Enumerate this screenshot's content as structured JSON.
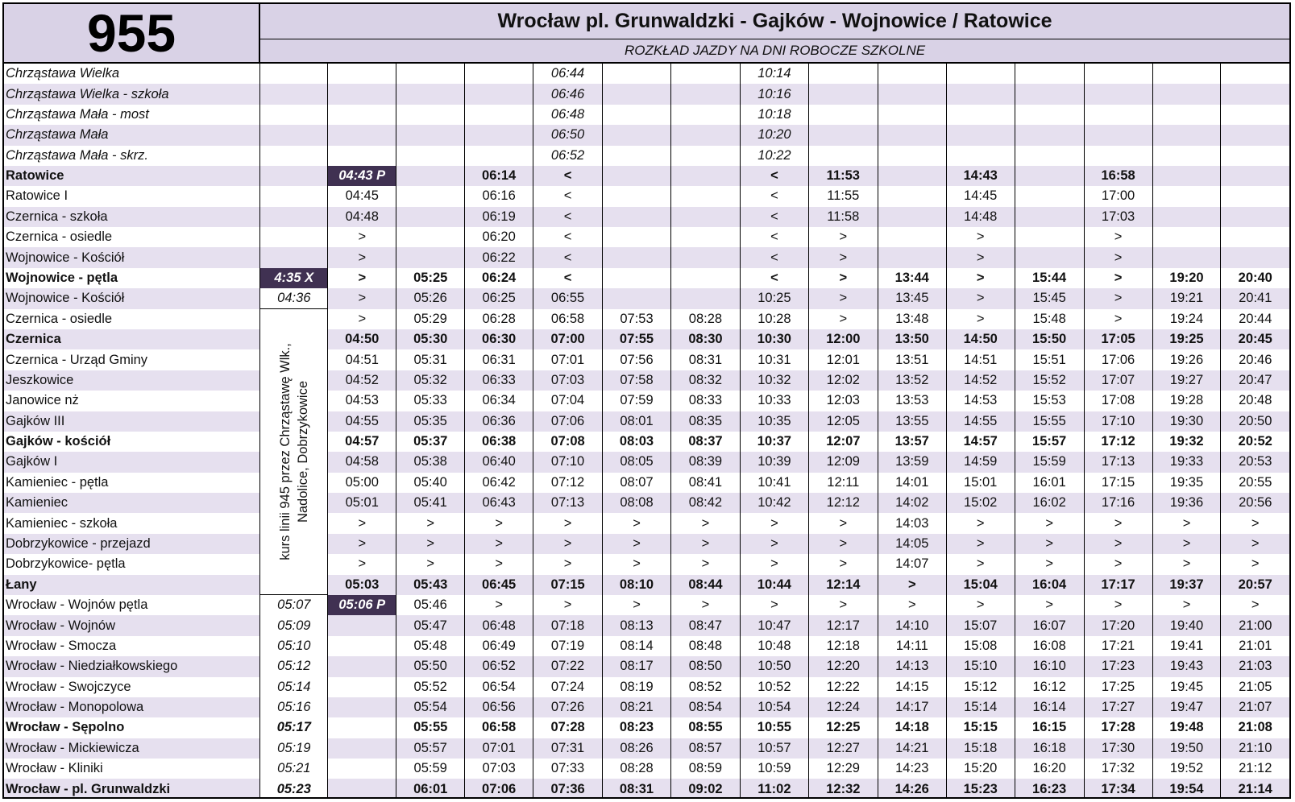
{
  "header": {
    "line_number": "955",
    "route_title": "Wrocław pl. Grunwaldzki - Gajków - Wojnowice / Ratowice",
    "schedule_type": "ROZKŁAD JAZDY NA DNI ROBOCZE SZKOLNE"
  },
  "note": "kurs linii 945 przez Chrząstawę Wlk., Nadolice, Dobrzykowice",
  "colors": {
    "header_bg": "#d9d2e6",
    "row_alt_bg": "#e6e0ef",
    "highlight_bg": "#403152"
  },
  "rows": [
    {
      "stop": "Chrząstawa Wielka",
      "style": "italic",
      "times": [
        "",
        "",
        "",
        "",
        "06:44",
        "",
        "",
        "10:14",
        "",
        "",
        "",
        "",
        "",
        "",
        ""
      ]
    },
    {
      "stop": "Chrząstawa Wielka - szkoła",
      "style": "italic",
      "times": [
        "",
        "",
        "",
        "",
        "06:46",
        "",
        "",
        "10:16",
        "",
        "",
        "",
        "",
        "",
        "",
        ""
      ]
    },
    {
      "stop": "Chrząstawa Mała - most",
      "style": "italic",
      "times": [
        "",
        "",
        "",
        "",
        "06:48",
        "",
        "",
        "10:18",
        "",
        "",
        "",
        "",
        "",
        "",
        ""
      ]
    },
    {
      "stop": "Chrząstawa Mała",
      "style": "italic",
      "times": [
        "",
        "",
        "",
        "",
        "06:50",
        "",
        "",
        "10:20",
        "",
        "",
        "",
        "",
        "",
        "",
        ""
      ]
    },
    {
      "stop": "Chrząstawa Mała - skrz.",
      "style": "italic",
      "times": [
        "",
        "",
        "",
        "",
        "06:52",
        "",
        "",
        "10:22",
        "",
        "",
        "",
        "",
        "",
        "",
        ""
      ]
    },
    {
      "stop": "Ratowice",
      "style": "bold",
      "times": [
        "",
        "04:43 P",
        "",
        "06:14",
        "<",
        "",
        "",
        "<",
        "11:53",
        "",
        "14:43",
        "",
        "16:58",
        "",
        ""
      ]
    },
    {
      "stop": "Ratowice I",
      "style": "normal",
      "times": [
        "",
        "04:45",
        "",
        "06:16",
        "<",
        "",
        "",
        "<",
        "11:55",
        "",
        "14:45",
        "",
        "17:00",
        "",
        ""
      ]
    },
    {
      "stop": "Czernica - szkoła",
      "style": "normal",
      "times": [
        "",
        "04:48",
        "",
        "06:19",
        "<",
        "",
        "",
        "<",
        "11:58",
        "",
        "14:48",
        "",
        "17:03",
        "",
        ""
      ]
    },
    {
      "stop": "Czernica - osiedle",
      "style": "normal",
      "times": [
        "",
        ">",
        "",
        "06:20",
        "<",
        "",
        "",
        "<",
        ">",
        "",
        ">",
        "",
        ">",
        "",
        ""
      ]
    },
    {
      "stop": "Wojnowice - Kościół",
      "style": "normal",
      "times": [
        "",
        ">",
        "",
        "06:22",
        "<",
        "",
        "",
        "<",
        ">",
        "",
        ">",
        "",
        ">",
        "",
        ""
      ]
    },
    {
      "stop": "Wojnowice - pętla",
      "style": "bold",
      "times": [
        "4:35 X",
        ">",
        "05:25",
        "06:24",
        "<",
        "",
        "",
        "<",
        ">",
        "13:44",
        ">",
        "15:44",
        ">",
        "19:20",
        "20:40"
      ]
    },
    {
      "stop": "Wojnowice - Kościół",
      "style": "normal",
      "times": [
        "04:36",
        ">",
        "05:26",
        "06:25",
        "06:55",
        "",
        "",
        "10:25",
        ">",
        "13:45",
        ">",
        "15:45",
        ">",
        "19:21",
        "20:41"
      ]
    },
    {
      "stop": "Czernica - osiedle",
      "style": "normal",
      "times": [
        "",
        ">",
        "05:29",
        "06:28",
        "06:58",
        "07:53",
        "08:28",
        "10:28",
        ">",
        "13:48",
        ">",
        "15:48",
        ">",
        "19:24",
        "20:44"
      ]
    },
    {
      "stop": "Czernica",
      "style": "bold",
      "times": [
        "",
        "04:50",
        "05:30",
        "06:30",
        "07:00",
        "07:55",
        "08:30",
        "10:30",
        "12:00",
        "13:50",
        "14:50",
        "15:50",
        "17:05",
        "19:25",
        "20:45"
      ]
    },
    {
      "stop": "Czernica - Urząd Gminy",
      "style": "normal",
      "times": [
        "",
        "04:51",
        "05:31",
        "06:31",
        "07:01",
        "07:56",
        "08:31",
        "10:31",
        "12:01",
        "13:51",
        "14:51",
        "15:51",
        "17:06",
        "19:26",
        "20:46"
      ]
    },
    {
      "stop": "Jeszkowice",
      "style": "normal",
      "times": [
        "",
        "04:52",
        "05:32",
        "06:33",
        "07:03",
        "07:58",
        "08:32",
        "10:32",
        "12:02",
        "13:52",
        "14:52",
        "15:52",
        "17:07",
        "19:27",
        "20:47"
      ]
    },
    {
      "stop": "Janowice nż",
      "style": "normal",
      "times": [
        "",
        "04:53",
        "05:33",
        "06:34",
        "07:04",
        "07:59",
        "08:33",
        "10:33",
        "12:03",
        "13:53",
        "14:53",
        "15:53",
        "17:08",
        "19:28",
        "20:48"
      ]
    },
    {
      "stop": "Gajków III",
      "style": "normal",
      "times": [
        "",
        "04:55",
        "05:35",
        "06:36",
        "07:06",
        "08:01",
        "08:35",
        "10:35",
        "12:05",
        "13:55",
        "14:55",
        "15:55",
        "17:10",
        "19:30",
        "20:50"
      ]
    },
    {
      "stop": "Gajków - kościół",
      "style": "bold",
      "times": [
        "",
        "04:57",
        "05:37",
        "06:38",
        "07:08",
        "08:03",
        "08:37",
        "10:37",
        "12:07",
        "13:57",
        "14:57",
        "15:57",
        "17:12",
        "19:32",
        "20:52"
      ]
    },
    {
      "stop": "Gajków I",
      "style": "normal",
      "times": [
        "",
        "04:58",
        "05:38",
        "06:40",
        "07:10",
        "08:05",
        "08:39",
        "10:39",
        "12:09",
        "13:59",
        "14:59",
        "15:59",
        "17:13",
        "19:33",
        "20:53"
      ]
    },
    {
      "stop": "Kamieniec - pętla",
      "style": "normal",
      "times": [
        "",
        "05:00",
        "05:40",
        "06:42",
        "07:12",
        "08:07",
        "08:41",
        "10:41",
        "12:11",
        "14:01",
        "15:01",
        "16:01",
        "17:15",
        "19:35",
        "20:55"
      ]
    },
    {
      "stop": "Kamieniec",
      "style": "normal",
      "times": [
        "",
        "05:01",
        "05:41",
        "06:43",
        "07:13",
        "08:08",
        "08:42",
        "10:42",
        "12:12",
        "14:02",
        "15:02",
        "16:02",
        "17:16",
        "19:36",
        "20:56"
      ]
    },
    {
      "stop": "Kamieniec - szkoła",
      "style": "normal",
      "times": [
        "",
        ">",
        ">",
        ">",
        ">",
        ">",
        ">",
        ">",
        ">",
        "14:03",
        ">",
        ">",
        ">",
        ">",
        ">"
      ]
    },
    {
      "stop": "Dobrzykowice - przejazd",
      "style": "normal",
      "times": [
        "",
        ">",
        ">",
        ">",
        ">",
        ">",
        ">",
        ">",
        ">",
        "14:05",
        ">",
        ">",
        ">",
        ">",
        ">"
      ]
    },
    {
      "stop": "Dobrzykowice-  pętla",
      "style": "normal",
      "times": [
        "",
        ">",
        ">",
        ">",
        ">",
        ">",
        ">",
        ">",
        ">",
        "14:07",
        ">",
        ">",
        ">",
        ">",
        ">"
      ]
    },
    {
      "stop": "Łany",
      "style": "bold",
      "times": [
        "",
        "05:03",
        "05:43",
        "06:45",
        "07:15",
        "08:10",
        "08:44",
        "10:44",
        "12:14",
        ">",
        "15:04",
        "16:04",
        "17:17",
        "19:37",
        "20:57"
      ]
    },
    {
      "stop": "Wrocław - Wojnów pętla",
      "style": "normal",
      "times": [
        "05:07",
        "05:06 P",
        "05:46",
        ">",
        ">",
        ">",
        ">",
        ">",
        ">",
        ">",
        ">",
        ">",
        ">",
        ">",
        ">"
      ]
    },
    {
      "stop": "Wrocław - Wojnów",
      "style": "normal",
      "times": [
        "05:09",
        "",
        "05:47",
        "06:48",
        "07:18",
        "08:13",
        "08:47",
        "10:47",
        "12:17",
        "14:10",
        "15:07",
        "16:07",
        "17:20",
        "19:40",
        "21:00"
      ]
    },
    {
      "stop": "Wrocław - Smocza",
      "style": "normal",
      "times": [
        "05:10",
        "",
        "05:48",
        "06:49",
        "07:19",
        "08:14",
        "08:48",
        "10:48",
        "12:18",
        "14:11",
        "15:08",
        "16:08",
        "17:21",
        "19:41",
        "21:01"
      ]
    },
    {
      "stop": "Wrocław - Niedziałkowskiego",
      "style": "normal",
      "times": [
        "05:12",
        "",
        "05:50",
        "06:52",
        "07:22",
        "08:17",
        "08:50",
        "10:50",
        "12:20",
        "14:13",
        "15:10",
        "16:10",
        "17:23",
        "19:43",
        "21:03"
      ]
    },
    {
      "stop": "Wrocław - Swojczyce",
      "style": "normal",
      "times": [
        "05:14",
        "",
        "05:52",
        "06:54",
        "07:24",
        "08:19",
        "08:52",
        "10:52",
        "12:22",
        "14:15",
        "15:12",
        "16:12",
        "17:25",
        "19:45",
        "21:05"
      ]
    },
    {
      "stop": "Wrocław - Monopolowa",
      "style": "normal",
      "times": [
        "05:16",
        "",
        "05:54",
        "06:56",
        "07:26",
        "08:21",
        "08:54",
        "10:54",
        "12:24",
        "14:17",
        "15:14",
        "16:14",
        "17:27",
        "19:47",
        "21:07"
      ]
    },
    {
      "stop": "Wrocław - Sępolno",
      "style": "bold",
      "times": [
        "05:17",
        "",
        "05:55",
        "06:58",
        "07:28",
        "08:23",
        "08:55",
        "10:55",
        "12:25",
        "14:18",
        "15:15",
        "16:15",
        "17:28",
        "19:48",
        "21:08"
      ]
    },
    {
      "stop": "Wrocław - Mickiewicza",
      "style": "normal",
      "times": [
        "05:19",
        "",
        "05:57",
        "07:01",
        "07:31",
        "08:26",
        "08:57",
        "10:57",
        "12:27",
        "14:21",
        "15:18",
        "16:18",
        "17:30",
        "19:50",
        "21:10"
      ]
    },
    {
      "stop": "Wrocław - Kliniki",
      "style": "normal",
      "times": [
        "05:21",
        "",
        "05:59",
        "07:03",
        "07:33",
        "08:28",
        "08:59",
        "10:59",
        "12:29",
        "14:23",
        "15:20",
        "16:20",
        "17:32",
        "19:52",
        "21:12"
      ]
    },
    {
      "stop": "Wrocław - pl. Grunwaldzki",
      "style": "bold",
      "times": [
        "05:23",
        "",
        "06:01",
        "07:06",
        "07:36",
        "08:31",
        "09:02",
        "11:02",
        "12:32",
        "14:26",
        "15:23",
        "16:23",
        "17:34",
        "19:54",
        "21:14"
      ]
    }
  ]
}
